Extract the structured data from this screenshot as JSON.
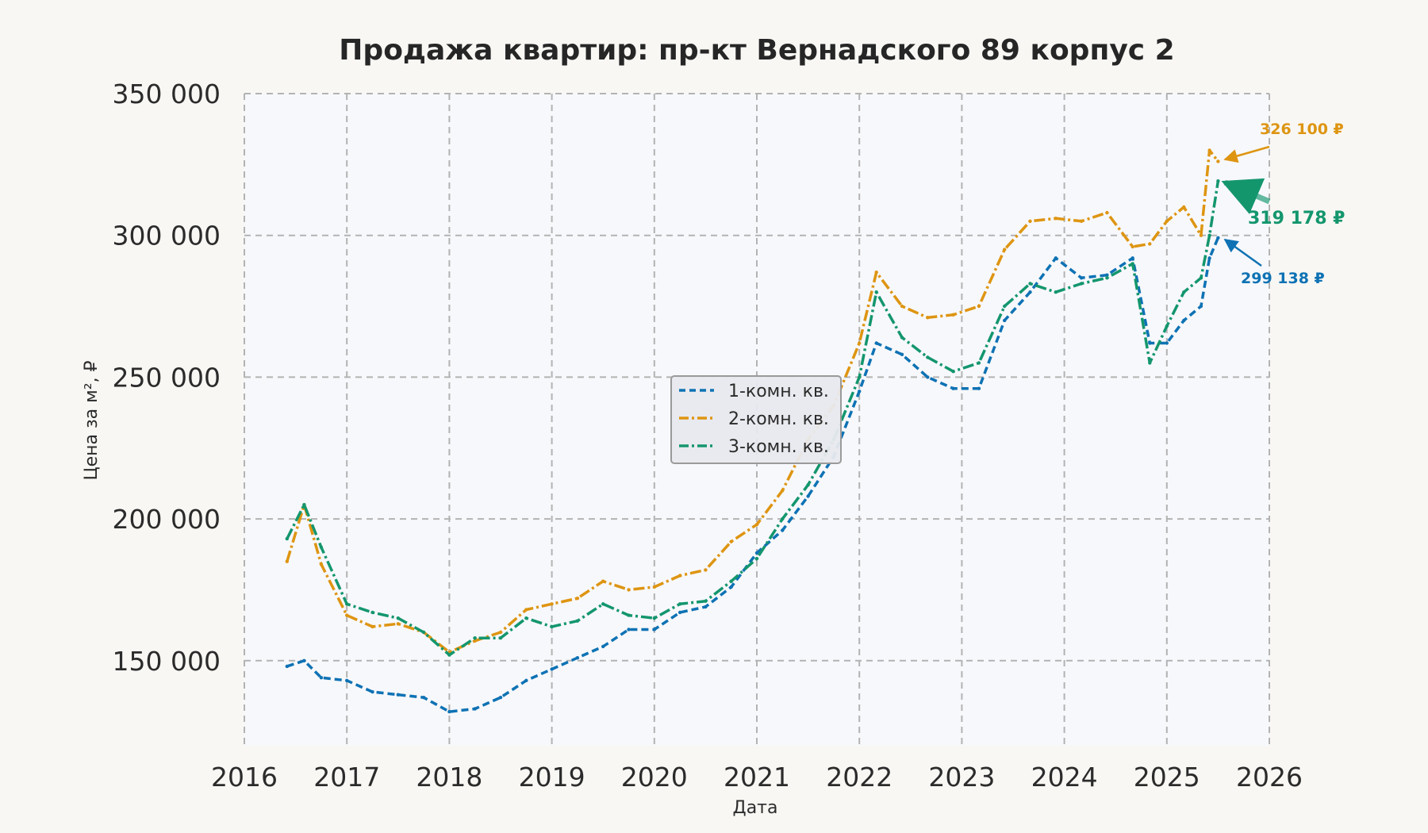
{
  "chart_data": {
    "type": "line",
    "title": "Продажа квартир: пр-кт Вернадского 89 корпус 2",
    "xlabel": "Дата",
    "ylabel": "Цена за м², ₽",
    "xlim": [
      2016,
      2026
    ],
    "ylim": [
      120000,
      350000
    ],
    "x_ticks": [
      "2016",
      "2017",
      "2018",
      "2019",
      "2020",
      "2021",
      "2022",
      "2023",
      "2024",
      "2025",
      "2026"
    ],
    "y_ticks": [
      "150 000",
      "200 000",
      "250 000",
      "300 000",
      "350 000"
    ],
    "grid": true,
    "legend_position": "center",
    "colors": {
      "1k": "#0e72b4",
      "2k": "#de9512",
      "3k": "#14966d"
    },
    "series": [
      {
        "key": "1k",
        "name": "1-комн. кв.",
        "style": "dashed",
        "points": [
          [
            "2016-06",
            148000
          ],
          [
            "2016-08",
            150000
          ],
          [
            "2016-10",
            144000
          ],
          [
            "2017-01",
            143000
          ],
          [
            "2017-04",
            139000
          ],
          [
            "2017-07",
            138000
          ],
          [
            "2017-10",
            137000
          ],
          [
            "2018-01",
            132000
          ],
          [
            "2018-04",
            133000
          ],
          [
            "2018-07",
            137000
          ],
          [
            "2018-10",
            143000
          ],
          [
            "2019-01",
            147000
          ],
          [
            "2019-04",
            151000
          ],
          [
            "2019-07",
            155000
          ],
          [
            "2019-10",
            161000
          ],
          [
            "2020-01",
            161000
          ],
          [
            "2020-04",
            167000
          ],
          [
            "2020-07",
            169000
          ],
          [
            "2020-10",
            176000
          ],
          [
            "2021-01",
            188000
          ],
          [
            "2021-04",
            196000
          ],
          [
            "2021-07",
            208000
          ],
          [
            "2021-10",
            222000
          ],
          [
            "2022-01",
            245000
          ],
          [
            "2022-03",
            262000
          ],
          [
            "2022-06",
            258000
          ],
          [
            "2022-09",
            250000
          ],
          [
            "2022-12",
            246000
          ],
          [
            "2023-03",
            246000
          ],
          [
            "2023-06",
            270000
          ],
          [
            "2023-09",
            280000
          ],
          [
            "2023-12",
            292000
          ],
          [
            "2024-03",
            285000
          ],
          [
            "2024-06",
            286000
          ],
          [
            "2024-09",
            292000
          ],
          [
            "2024-11",
            262000
          ],
          [
            "2025-01",
            262000
          ],
          [
            "2025-03",
            270000
          ],
          [
            "2025-05",
            275000
          ],
          [
            "2025-06",
            292000
          ],
          [
            "2025-07",
            299138
          ]
        ]
      },
      {
        "key": "2k",
        "name": "2-комн. кв.",
        "style": "dashdot",
        "points": [
          [
            "2016-06",
            185000
          ],
          [
            "2016-08",
            205000
          ],
          [
            "2016-10",
            184000
          ],
          [
            "2017-01",
            166000
          ],
          [
            "2017-04",
            162000
          ],
          [
            "2017-07",
            163000
          ],
          [
            "2017-10",
            160000
          ],
          [
            "2018-01",
            153000
          ],
          [
            "2018-04",
            157000
          ],
          [
            "2018-07",
            160000
          ],
          [
            "2018-10",
            168000
          ],
          [
            "2019-01",
            170000
          ],
          [
            "2019-04",
            172000
          ],
          [
            "2019-07",
            178000
          ],
          [
            "2019-10",
            175000
          ],
          [
            "2020-01",
            176000
          ],
          [
            "2020-04",
            180000
          ],
          [
            "2020-07",
            182000
          ],
          [
            "2020-10",
            192000
          ],
          [
            "2021-01",
            198000
          ],
          [
            "2021-04",
            210000
          ],
          [
            "2021-07",
            228000
          ],
          [
            "2021-10",
            240000
          ],
          [
            "2022-01",
            262000
          ],
          [
            "2022-03",
            287000
          ],
          [
            "2022-06",
            275000
          ],
          [
            "2022-09",
            271000
          ],
          [
            "2022-12",
            272000
          ],
          [
            "2023-03",
            275000
          ],
          [
            "2023-06",
            295000
          ],
          [
            "2023-09",
            305000
          ],
          [
            "2023-12",
            306000
          ],
          [
            "2024-03",
            305000
          ],
          [
            "2024-06",
            308000
          ],
          [
            "2024-09",
            296000
          ],
          [
            "2024-11",
            297000
          ],
          [
            "2025-01",
            305000
          ],
          [
            "2025-03",
            310000
          ],
          [
            "2025-05",
            300000
          ],
          [
            "2025-06",
            330000
          ],
          [
            "2025-07",
            326100
          ]
        ]
      },
      {
        "key": "3k",
        "name": "3-комн. кв.",
        "style": "dashdot",
        "points": [
          [
            "2016-06",
            193000
          ],
          [
            "2016-08",
            205000
          ],
          [
            "2016-10",
            190000
          ],
          [
            "2017-01",
            170000
          ],
          [
            "2017-04",
            167000
          ],
          [
            "2017-07",
            165000
          ],
          [
            "2017-10",
            160000
          ],
          [
            "2018-01",
            152000
          ],
          [
            "2018-04",
            158000
          ],
          [
            "2018-07",
            158000
          ],
          [
            "2018-10",
            165000
          ],
          [
            "2019-01",
            162000
          ],
          [
            "2019-04",
            164000
          ],
          [
            "2019-07",
            170000
          ],
          [
            "2019-10",
            166000
          ],
          [
            "2020-01",
            165000
          ],
          [
            "2020-04",
            170000
          ],
          [
            "2020-07",
            171000
          ],
          [
            "2020-10",
            178000
          ],
          [
            "2021-01",
            186000
          ],
          [
            "2021-04",
            200000
          ],
          [
            "2021-07",
            212000
          ],
          [
            "2021-10",
            228000
          ],
          [
            "2022-01",
            250000
          ],
          [
            "2022-03",
            280000
          ],
          [
            "2022-06",
            264000
          ],
          [
            "2022-09",
            257000
          ],
          [
            "2022-12",
            252000
          ],
          [
            "2023-03",
            255000
          ],
          [
            "2023-06",
            275000
          ],
          [
            "2023-09",
            283000
          ],
          [
            "2023-12",
            280000
          ],
          [
            "2024-03",
            283000
          ],
          [
            "2024-06",
            285000
          ],
          [
            "2024-09",
            290000
          ],
          [
            "2024-11",
            255000
          ],
          [
            "2025-01",
            268000
          ],
          [
            "2025-03",
            280000
          ],
          [
            "2025-05",
            285000
          ],
          [
            "2025-06",
            300000
          ],
          [
            "2025-07",
            319178
          ]
        ]
      }
    ],
    "annotations": [
      {
        "key": "2k",
        "text": "326 100 ₽",
        "value": 326100
      },
      {
        "key": "3k",
        "text": "319 178 ₽",
        "value": 319178
      },
      {
        "key": "1k",
        "text": "299 138 ₽",
        "value": 299138
      }
    ]
  }
}
